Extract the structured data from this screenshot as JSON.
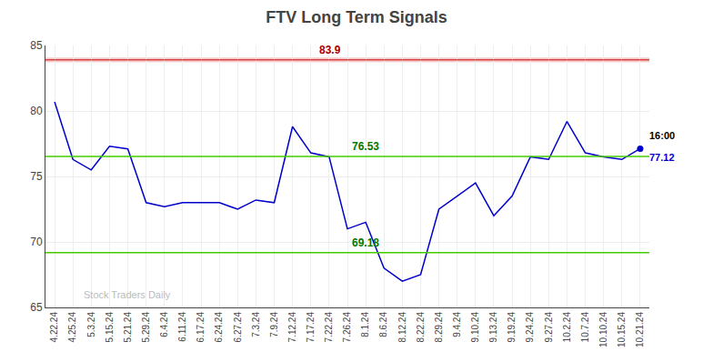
{
  "chart_data": {
    "type": "line",
    "title": "FTV Long Term Signals",
    "categories": [
      "4.22.24",
      "4.25.24",
      "5.3.24",
      "5.15.24",
      "5.21.24",
      "5.29.24",
      "6.4.24",
      "6.11.24",
      "6.17.24",
      "6.24.24",
      "6.27.24",
      "7.3.24",
      "7.9.24",
      "7.12.24",
      "7.17.24",
      "7.22.24",
      "7.26.24",
      "8.1.24",
      "8.6.24",
      "8.12.24",
      "8.22.24",
      "8.29.24",
      "9.4.24",
      "9.10.24",
      "9.13.24",
      "9.19.24",
      "9.24.24",
      "9.27.24",
      "10.2.24",
      "10.7.24",
      "10.10.24",
      "10.15.24",
      "10.21.24"
    ],
    "values": [
      80.7,
      76.3,
      75.5,
      77.3,
      77.1,
      73.0,
      72.7,
      73.0,
      73.0,
      73.0,
      72.5,
      73.2,
      73.0,
      78.8,
      76.8,
      76.5,
      71.0,
      71.5,
      68.0,
      67.0,
      67.5,
      72.5,
      73.5,
      74.5,
      72.0,
      73.5,
      76.5,
      76.3,
      79.2,
      76.8,
      76.5,
      76.3,
      77.12
    ],
    "color": "#0000cc",
    "ylim": [
      65,
      85
    ],
    "yticks": [
      65,
      70,
      75,
      80,
      85
    ],
    "grid": true,
    "reference_lines": [
      {
        "value": 83.9,
        "color": "#cc0000",
        "label": "83.9",
        "label_color": "#aa0000"
      },
      {
        "value": 76.53,
        "color": "#44cc00",
        "label": "76.53",
        "label_color": "#007700"
      },
      {
        "value": 69.18,
        "color": "#44cc00",
        "label": "69.18",
        "label_color": "#007700"
      }
    ],
    "last_point_labels": [
      "16:00",
      "77.12"
    ],
    "watermark": "Stock Traders Daily"
  }
}
